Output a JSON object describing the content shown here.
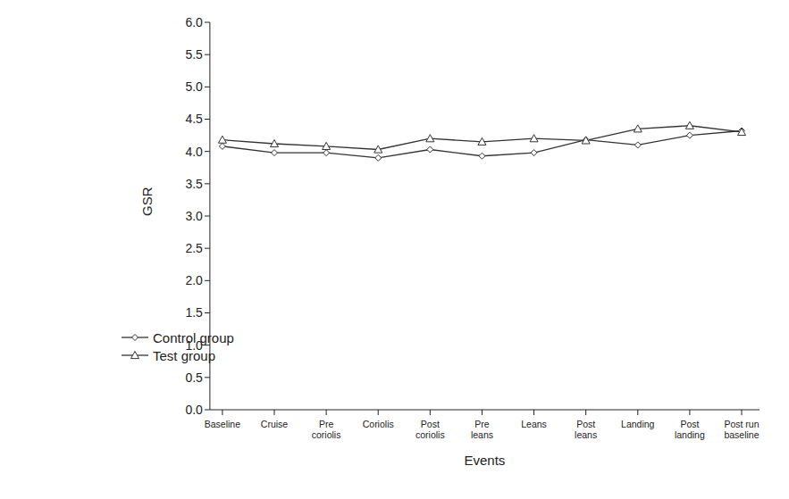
{
  "chart_data": {
    "type": "line",
    "x_label": "Events",
    "y_label": "GSR",
    "categories": [
      "Baseline",
      "Cruise",
      "Pre coriolis",
      "Coriolis",
      "Post coriolis",
      "Pre leans",
      "Leans",
      "Post leans",
      "Landing",
      "Post landing",
      "Post run baseline"
    ],
    "series": [
      {
        "name": "Control group",
        "color": "#333333",
        "marker": "diamond",
        "line_style": "solid",
        "values": [
          4.08,
          3.98,
          3.98,
          3.9,
          4.03,
          3.93,
          3.98,
          4.18,
          4.1,
          4.25,
          4.32
        ]
      },
      {
        "name": "Test group",
        "color": "#333333",
        "marker": "triangle",
        "line_style": "solid",
        "values": [
          4.18,
          4.12,
          4.08,
          4.03,
          4.2,
          4.15,
          4.2,
          4.17,
          4.35,
          4.4,
          4.3
        ]
      }
    ],
    "ylim": [
      0,
      6
    ],
    "yticks": [
      {
        "value": 0,
        "label": "0.0"
      },
      0.5,
      {
        "value": 1,
        "label": "1.0"
      },
      1.5,
      {
        "value": 2,
        "label": "2.0"
      },
      2.5,
      {
        "value": 3,
        "label": "3.0"
      },
      3.5,
      {
        "value": 4,
        "label": "4.0"
      },
      4.5,
      {
        "value": 5,
        "label": "5.0"
      },
      5.5,
      {
        "value": 6,
        "label": "6.0"
      }
    ],
    "grid": false,
    "legend": "lower left"
  }
}
